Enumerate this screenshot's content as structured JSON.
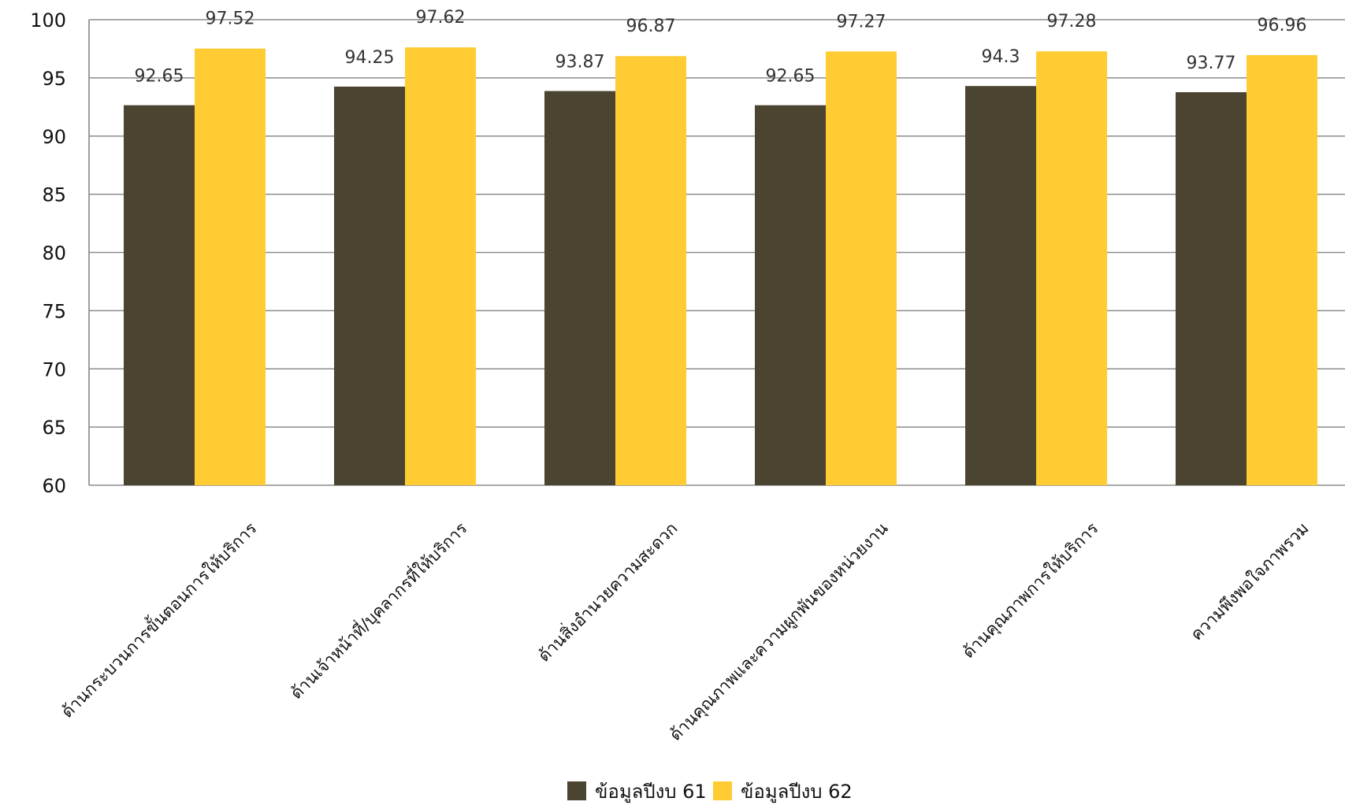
{
  "chart_data": {
    "type": "bar",
    "categories": [
      "ด้านกระบวนการขั้นตอนการให้บริการ",
      "ด้านเจ้าหน้าที่/บุคลากรที่ให้บริการ",
      "ด้านสิ่งอำนวยความสะดวก",
      "ด้านคุณภาพและความผูกพันของหน่วยงาน",
      "ด้านคุณภาพการให้บริการ",
      "ความพึงพอใจภาพรวม"
    ],
    "series": [
      {
        "name": "ข้อมูลปีงบ 61",
        "color": "#4b4430",
        "values": [
          92.65,
          94.25,
          93.87,
          92.65,
          94.3,
          93.77
        ]
      },
      {
        "name": "ข้อมูลปีงบ 62",
        "color": "#ffcc33",
        "values": [
          97.52,
          97.62,
          96.87,
          97.27,
          97.28,
          96.96
        ]
      }
    ],
    "ylim": [
      60,
      100
    ],
    "yticks": [
      "100",
      "95",
      "90",
      "85",
      "80",
      "75",
      "70",
      "65",
      "60"
    ],
    "grid": true,
    "legend": "bottom",
    "title": "",
    "xlabel": "",
    "ylabel": ""
  }
}
